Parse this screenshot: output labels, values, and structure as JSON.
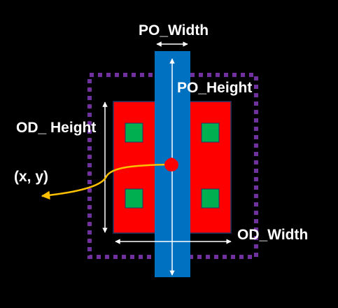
{
  "labels": {
    "po_width": "PO_Width",
    "po_height": "PO_Height",
    "od_height": "OD_ Height",
    "od_width": "OD_Width",
    "origin": "(x, y)"
  },
  "colors": {
    "background": "#000000",
    "od_fill": "#ff0000",
    "po_fill": "#0070c0",
    "contact_fill": "#00b050",
    "boundary": "#7030a0",
    "origin_marker": "#ff0000",
    "pointer": "#ffc000",
    "dimension": "#ffffff"
  }
}
